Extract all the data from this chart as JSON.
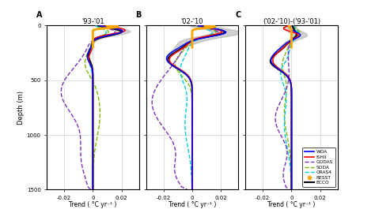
{
  "title_A": "'93-'01",
  "title_B": "'02-'10",
  "title_C": "('02-'10)-('93-'01)",
  "label_A": "A",
  "label_B": "B",
  "label_C": "C",
  "xlabel": "Trend ( °C yr⁻¹ )",
  "ylabel": "Depth (m)",
  "ylim": [
    1500,
    0
  ],
  "xlim": [
    -0.032,
    0.032
  ],
  "xticks": [
    -0.02,
    0,
    0.02
  ],
  "yticks": [
    0,
    500,
    1000,
    1500
  ],
  "colors": {
    "WOA": "#0000FF",
    "ISHII": "#FF0000",
    "GODAS": "#7B2FBE",
    "SODA": "#77BB00",
    "ORAS4": "#00CCDD",
    "RESST": "#FFA500",
    "ECCO": "#000000"
  },
  "background": "#FFFFFF"
}
